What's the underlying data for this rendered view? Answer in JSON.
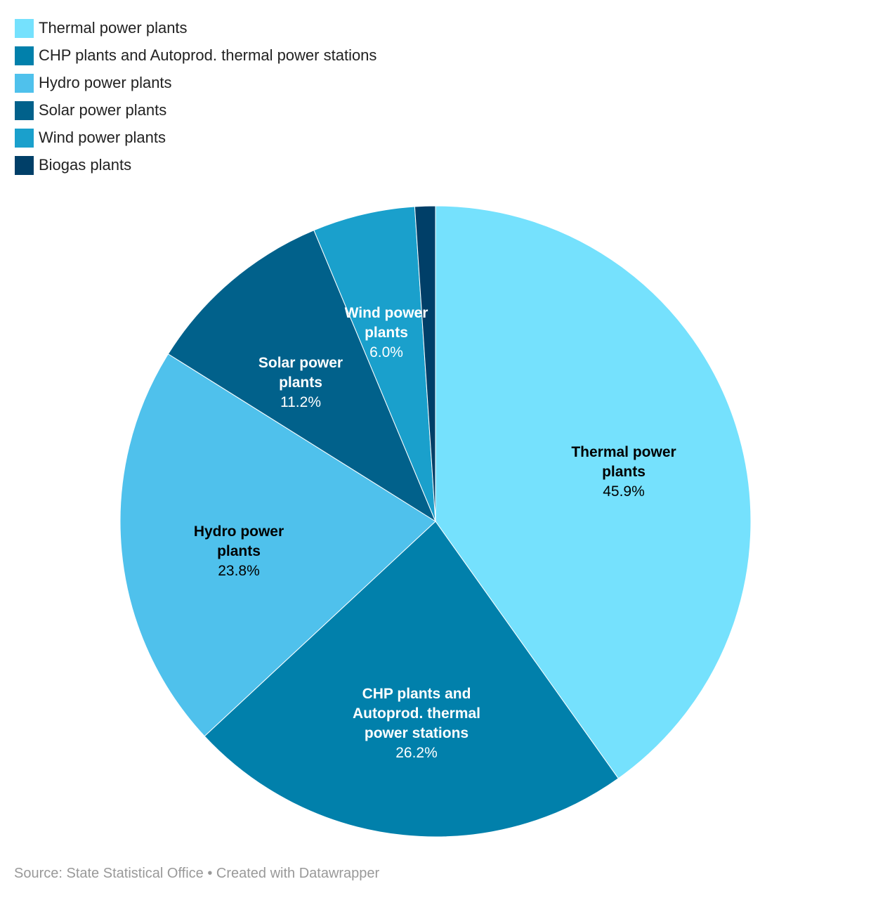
{
  "chart_data": {
    "type": "pie",
    "title": "",
    "legend_position": "top-left",
    "slices": [
      {
        "label": "Thermal power plants",
        "chart_label": [
          "Thermal power",
          "plants"
        ],
        "value": 45.9,
        "value_label": "45.9%",
        "color": "#75e1fd",
        "text_color": "#000000"
      },
      {
        "label": "CHP plants and Autoprod. thermal power stations",
        "chart_label": [
          "CHP plants and",
          "Autoprod. thermal",
          "power stations"
        ],
        "value": 26.2,
        "value_label": "26.2%",
        "color": "#0180ab",
        "text_color": "#ffffff"
      },
      {
        "label": "Hydro power plants",
        "chart_label": [
          "Hydro power",
          "plants"
        ],
        "value": 23.8,
        "value_label": "23.8%",
        "color": "#4fc1ec",
        "text_color": "#000000"
      },
      {
        "label": "Solar power plants",
        "chart_label": [
          "Solar power",
          "plants"
        ],
        "value": 11.2,
        "value_label": "11.2%",
        "color": "#01618b",
        "text_color": "#ffffff"
      },
      {
        "label": "Wind power plants",
        "chart_label": [
          "Wind power",
          "plants"
        ],
        "value": 6.0,
        "value_label": "6.0%",
        "color": "#1aa0cc",
        "text_color": "#ffffff"
      },
      {
        "label": "Biogas plants",
        "chart_label": [],
        "value": 1.2,
        "value_label": "",
        "color": "#003f68",
        "text_color": "#ffffff"
      }
    ]
  },
  "footer": {
    "source": "Source: State Statistical Office • Created with Datawrapper"
  }
}
